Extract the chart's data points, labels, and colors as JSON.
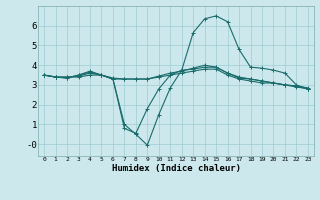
{
  "xlabel": "Humidex (Indice chaleur)",
  "bg_color": "#cce8ec",
  "grid_color": "#9ecdd4",
  "line_color": "#1a6b6b",
  "xlim": [
    -0.5,
    23.5
  ],
  "ylim": [
    -0.6,
    7.0
  ],
  "xticks": [
    0,
    1,
    2,
    3,
    4,
    5,
    6,
    7,
    8,
    9,
    10,
    11,
    12,
    13,
    14,
    15,
    16,
    17,
    18,
    19,
    20,
    21,
    22,
    23
  ],
  "yticks": [
    0,
    1,
    2,
    3,
    4,
    5,
    6
  ],
  "ytick_labels": [
    "-0",
    "1",
    "2",
    "3",
    "4",
    "5",
    "6"
  ],
  "series": [
    {
      "x": [
        0,
        1,
        2,
        3,
        4,
        5,
        6,
        7,
        8,
        9,
        10,
        11,
        12,
        13,
        14,
        15,
        16,
        17,
        18,
        19,
        20,
        21,
        22,
        23
      ],
      "y": [
        3.5,
        3.4,
        3.4,
        3.4,
        3.5,
        3.5,
        3.3,
        3.3,
        3.3,
        3.3,
        3.4,
        3.5,
        3.6,
        3.7,
        3.8,
        3.8,
        3.5,
        3.3,
        3.2,
        3.1,
        3.1,
        3.0,
        2.9,
        2.8
      ]
    },
    {
      "x": [
        0,
        1,
        2,
        3,
        4,
        5,
        6,
        7,
        8,
        9,
        10,
        11,
        12,
        13,
        14,
        15,
        16,
        17,
        18,
        19,
        20,
        21,
        22,
        23
      ],
      "y": [
        3.5,
        3.4,
        3.4,
        3.45,
        3.6,
        3.5,
        3.35,
        3.3,
        3.3,
        3.3,
        3.45,
        3.6,
        3.7,
        3.85,
        4.0,
        3.9,
        3.6,
        3.4,
        3.3,
        3.2,
        3.1,
        3.0,
        2.95,
        2.85
      ]
    },
    {
      "x": [
        0,
        1,
        2,
        3,
        4,
        5,
        6,
        7,
        8,
        9,
        10,
        11,
        12,
        13,
        14,
        15,
        16,
        17,
        18,
        19,
        20,
        21,
        22,
        23
      ],
      "y": [
        3.5,
        3.4,
        3.35,
        3.5,
        3.7,
        3.5,
        3.3,
        1.0,
        0.5,
        -0.05,
        1.5,
        2.85,
        3.75,
        5.65,
        6.35,
        6.5,
        6.2,
        4.8,
        3.9,
        3.85,
        3.75,
        3.6,
        3.0,
        2.8
      ]
    },
    {
      "x": [
        0,
        1,
        2,
        3,
        4,
        5,
        6,
        7,
        8,
        9,
        10,
        11,
        12,
        13,
        14,
        15,
        16,
        17,
        18,
        19,
        20,
        21,
        22,
        23
      ],
      "y": [
        3.5,
        3.4,
        3.35,
        3.5,
        3.65,
        3.5,
        3.3,
        0.8,
        0.55,
        1.8,
        2.8,
        3.5,
        3.75,
        3.8,
        3.9,
        3.9,
        3.6,
        3.35,
        3.3,
        3.2,
        3.1,
        3.0,
        2.95,
        2.8
      ]
    }
  ]
}
